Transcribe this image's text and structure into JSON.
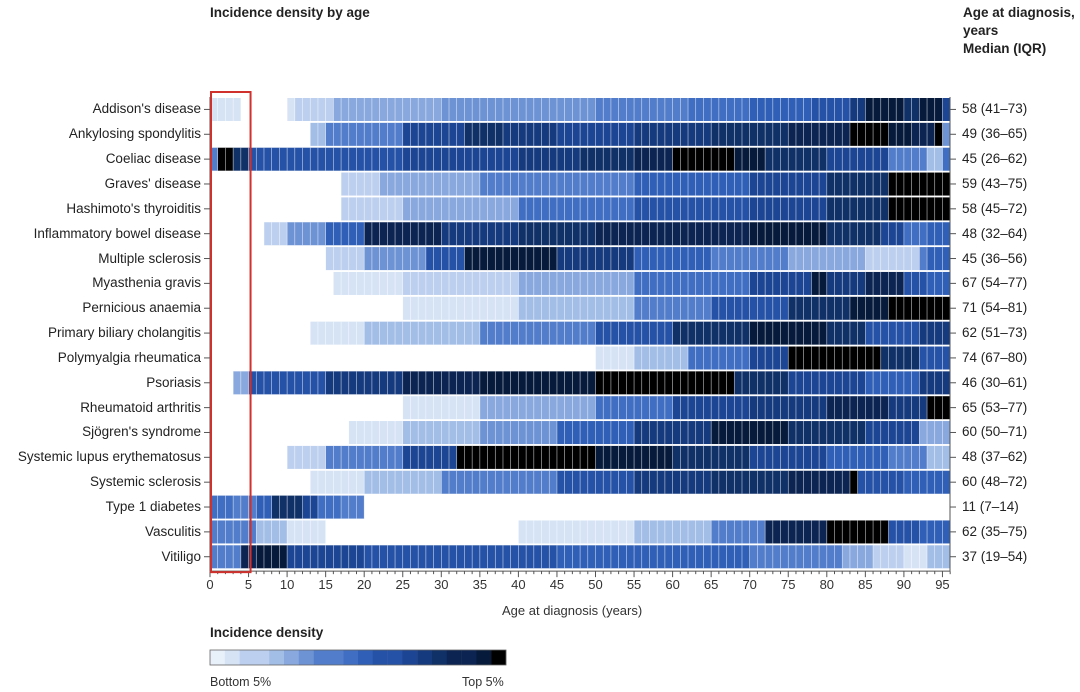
{
  "chart_data": {
    "type": "heatmap",
    "title": "Incidence density by age",
    "xlabel": "Age at diagnosis (years)",
    "x_ticks": [
      "0",
      "5",
      "10",
      "15",
      "20",
      "25",
      "30",
      "35",
      "40",
      "45",
      "50",
      "55",
      "60",
      "65",
      "70",
      "75",
      "80",
      "85",
      "90",
      "95"
    ],
    "x_range": [
      0,
      96
    ],
    "right_header": [
      "Age at diagnosis,",
      "years",
      "Median (IQR)"
    ],
    "legend": {
      "title": "Incidence density",
      "low_label": "Bottom 5%",
      "high_label": "Top 5%",
      "steps": 20
    },
    "highlight_box": {
      "x_from": 0,
      "x_to": 5
    },
    "color_scale": [
      "#e8f0fa",
      "#d5e3f5",
      "#bccfee",
      "#a2bde6",
      "#88a8de",
      "#6d93d4",
      "#527dca",
      "#3f6ec2",
      "#2f5fb6",
      "#2552a6",
      "#1c4694",
      "#163a7e",
      "#103068",
      "#0b2452",
      "#061a3c",
      "#000000"
    ],
    "rows": [
      {
        "disease": "Addison's disease",
        "median_iqr": "58 (41–73)",
        "segments": [
          [
            0,
            4,
            1
          ],
          [
            10,
            11,
            1
          ],
          [
            11,
            16,
            2
          ],
          [
            16,
            30,
            4
          ],
          [
            30,
            50,
            5
          ],
          [
            50,
            62,
            6
          ],
          [
            62,
            70,
            7
          ],
          [
            70,
            78,
            8
          ],
          [
            78,
            83,
            9
          ],
          [
            83,
            85,
            11
          ],
          [
            85,
            90,
            14
          ],
          [
            90,
            92,
            12
          ],
          [
            92,
            95,
            14
          ],
          [
            95,
            96,
            10
          ]
        ]
      },
      {
        "disease": "Ankylosing spondylitis",
        "median_iqr": "49 (36–65)",
        "segments": [
          [
            13,
            15,
            3
          ],
          [
            15,
            25,
            6
          ],
          [
            25,
            33,
            10
          ],
          [
            33,
            38,
            12
          ],
          [
            38,
            45,
            11
          ],
          [
            45,
            55,
            10
          ],
          [
            55,
            65,
            11
          ],
          [
            65,
            75,
            12
          ],
          [
            75,
            83,
            13
          ],
          [
            83,
            88,
            15
          ],
          [
            88,
            91,
            14
          ],
          [
            91,
            94,
            13
          ],
          [
            94,
            95,
            15
          ],
          [
            95,
            96,
            5
          ]
        ]
      },
      {
        "disease": "Coeliac disease",
        "median_iqr": "45 (26–62)",
        "segments": [
          [
            0,
            1,
            6
          ],
          [
            1,
            3,
            15
          ],
          [
            3,
            5,
            12
          ],
          [
            5,
            25,
            9
          ],
          [
            25,
            40,
            10
          ],
          [
            40,
            48,
            11
          ],
          [
            48,
            55,
            12
          ],
          [
            55,
            60,
            13
          ],
          [
            60,
            68,
            15
          ],
          [
            68,
            72,
            14
          ],
          [
            72,
            80,
            12
          ],
          [
            80,
            88,
            10
          ],
          [
            88,
            93,
            6
          ],
          [
            93,
            95,
            3
          ],
          [
            95,
            96,
            7
          ]
        ]
      },
      {
        "disease": "Graves' disease",
        "median_iqr": "59 (43–75)",
        "segments": [
          [
            17,
            22,
            2
          ],
          [
            22,
            35,
            4
          ],
          [
            35,
            55,
            6
          ],
          [
            55,
            70,
            8
          ],
          [
            70,
            80,
            10
          ],
          [
            80,
            88,
            12
          ],
          [
            88,
            96,
            15
          ]
        ]
      },
      {
        "disease": "Hashimoto's thyroiditis",
        "median_iqr": "58 (45–72)",
        "segments": [
          [
            17,
            25,
            2
          ],
          [
            25,
            40,
            4
          ],
          [
            40,
            55,
            7
          ],
          [
            55,
            70,
            9
          ],
          [
            70,
            80,
            10
          ],
          [
            80,
            88,
            12
          ],
          [
            88,
            96,
            15
          ]
        ]
      },
      {
        "disease": "Inflammatory bowel disease",
        "median_iqr": "48 (32–64)",
        "segments": [
          [
            7,
            10,
            2
          ],
          [
            10,
            15,
            5
          ],
          [
            15,
            20,
            8
          ],
          [
            20,
            30,
            13
          ],
          [
            30,
            40,
            11
          ],
          [
            40,
            50,
            12
          ],
          [
            50,
            70,
            13
          ],
          [
            70,
            80,
            14
          ],
          [
            80,
            87,
            12
          ],
          [
            87,
            90,
            10
          ],
          [
            90,
            93,
            7
          ],
          [
            93,
            96,
            8
          ]
        ]
      },
      {
        "disease": "Multiple sclerosis",
        "median_iqr": "45 (36–56)",
        "segments": [
          [
            15,
            20,
            2
          ],
          [
            20,
            28,
            5
          ],
          [
            28,
            33,
            9
          ],
          [
            33,
            45,
            14
          ],
          [
            45,
            55,
            11
          ],
          [
            55,
            65,
            8
          ],
          [
            65,
            75,
            6
          ],
          [
            75,
            85,
            4
          ],
          [
            85,
            92,
            2
          ],
          [
            92,
            93,
            6
          ],
          [
            93,
            96,
            8
          ]
        ]
      },
      {
        "disease": "Myasthenia gravis",
        "median_iqr": "67 (54–77)",
        "segments": [
          [
            16,
            25,
            1
          ],
          [
            25,
            40,
            2
          ],
          [
            40,
            55,
            4
          ],
          [
            55,
            70,
            7
          ],
          [
            70,
            78,
            10
          ],
          [
            78,
            80,
            14
          ],
          [
            80,
            85,
            11
          ],
          [
            85,
            90,
            13
          ],
          [
            90,
            93,
            9
          ],
          [
            93,
            96,
            8
          ]
        ]
      },
      {
        "disease": "Pernicious anaemia",
        "median_iqr": "71 (54–81)",
        "segments": [
          [
            25,
            40,
            1
          ],
          [
            40,
            55,
            3
          ],
          [
            55,
            65,
            6
          ],
          [
            65,
            75,
            9
          ],
          [
            75,
            83,
            12
          ],
          [
            83,
            88,
            14
          ],
          [
            88,
            96,
            15
          ]
        ]
      },
      {
        "disease": "Primary biliary cholangitis",
        "median_iqr": "62 (51–73)",
        "segments": [
          [
            13,
            20,
            1
          ],
          [
            20,
            35,
            3
          ],
          [
            35,
            50,
            6
          ],
          [
            50,
            60,
            9
          ],
          [
            60,
            70,
            12
          ],
          [
            70,
            80,
            14
          ],
          [
            80,
            85,
            12
          ],
          [
            85,
            92,
            9
          ],
          [
            92,
            96,
            11
          ]
        ]
      },
      {
        "disease": "Polymyalgia rheumatica",
        "median_iqr": "74 (67–80)",
        "segments": [
          [
            50,
            55,
            1
          ],
          [
            55,
            62,
            3
          ],
          [
            62,
            70,
            7
          ],
          [
            70,
            75,
            10
          ],
          [
            75,
            87,
            15
          ],
          [
            87,
            92,
            12
          ],
          [
            92,
            96,
            9
          ]
        ]
      },
      {
        "disease": "Psoriasis",
        "median_iqr": "46 (30–61)",
        "segments": [
          [
            3,
            5,
            4
          ],
          [
            5,
            15,
            9
          ],
          [
            15,
            25,
            11
          ],
          [
            25,
            35,
            13
          ],
          [
            35,
            50,
            14
          ],
          [
            50,
            68,
            15
          ],
          [
            68,
            75,
            12
          ],
          [
            75,
            85,
            10
          ],
          [
            85,
            92,
            8
          ],
          [
            92,
            96,
            11
          ]
        ]
      },
      {
        "disease": "Rheumatoid arthritis",
        "median_iqr": "65 (53–77)",
        "segments": [
          [
            25,
            35,
            1
          ],
          [
            35,
            50,
            4
          ],
          [
            50,
            60,
            7
          ],
          [
            60,
            70,
            10
          ],
          [
            70,
            80,
            11
          ],
          [
            80,
            88,
            13
          ],
          [
            88,
            93,
            11
          ],
          [
            93,
            96,
            15
          ]
        ]
      },
      {
        "disease": "Sjögren's syndrome",
        "median_iqr": "60 (50–71)",
        "segments": [
          [
            18,
            25,
            1
          ],
          [
            25,
            35,
            3
          ],
          [
            35,
            45,
            5
          ],
          [
            45,
            55,
            8
          ],
          [
            55,
            65,
            11
          ],
          [
            65,
            75,
            14
          ],
          [
            75,
            85,
            12
          ],
          [
            85,
            92,
            10
          ],
          [
            92,
            96,
            4
          ]
        ]
      },
      {
        "disease": "Systemic lupus erythematosus",
        "median_iqr": "48 (37–62)",
        "segments": [
          [
            10,
            15,
            2
          ],
          [
            15,
            25,
            6
          ],
          [
            25,
            32,
            10
          ],
          [
            32,
            50,
            15
          ],
          [
            50,
            60,
            14
          ],
          [
            60,
            70,
            12
          ],
          [
            70,
            80,
            10
          ],
          [
            80,
            88,
            8
          ],
          [
            88,
            93,
            6
          ],
          [
            93,
            96,
            3
          ]
        ]
      },
      {
        "disease": "Systemic sclerosis",
        "median_iqr": "60 (48–72)",
        "segments": [
          [
            13,
            20,
            1
          ],
          [
            20,
            30,
            3
          ],
          [
            30,
            45,
            6
          ],
          [
            45,
            55,
            9
          ],
          [
            55,
            65,
            11
          ],
          [
            65,
            75,
            12
          ],
          [
            75,
            83,
            13
          ],
          [
            83,
            84,
            15
          ],
          [
            84,
            90,
            9
          ],
          [
            90,
            96,
            8
          ]
        ]
      },
      {
        "disease": "Type 1 diabetes",
        "median_iqr": "11 (7–14)",
        "segments": [
          [
            0,
            3,
            7
          ],
          [
            3,
            6,
            6
          ],
          [
            6,
            8,
            8
          ],
          [
            8,
            12,
            12
          ],
          [
            12,
            14,
            10
          ],
          [
            14,
            17,
            7
          ],
          [
            17,
            20,
            6
          ]
        ]
      },
      {
        "disease": "Vasculitis",
        "median_iqr": "62 (35–75)",
        "segments": [
          [
            0,
            6,
            6
          ],
          [
            6,
            10,
            3
          ],
          [
            10,
            15,
            1
          ],
          [
            40,
            55,
            1
          ],
          [
            55,
            65,
            3
          ],
          [
            65,
            72,
            6
          ],
          [
            72,
            80,
            13
          ],
          [
            80,
            88,
            15
          ],
          [
            88,
            92,
            9
          ],
          [
            92,
            96,
            8
          ]
        ]
      },
      {
        "disease": "Vitiligo",
        "median_iqr": "37 (19–54)",
        "segments": [
          [
            0,
            4,
            6
          ],
          [
            4,
            6,
            13
          ],
          [
            6,
            10,
            14
          ],
          [
            10,
            20,
            10
          ],
          [
            20,
            45,
            9
          ],
          [
            45,
            70,
            8
          ],
          [
            70,
            82,
            6
          ],
          [
            82,
            86,
            4
          ],
          [
            86,
            90,
            2
          ],
          [
            90,
            93,
            1
          ],
          [
            93,
            96,
            3
          ]
        ]
      }
    ]
  }
}
